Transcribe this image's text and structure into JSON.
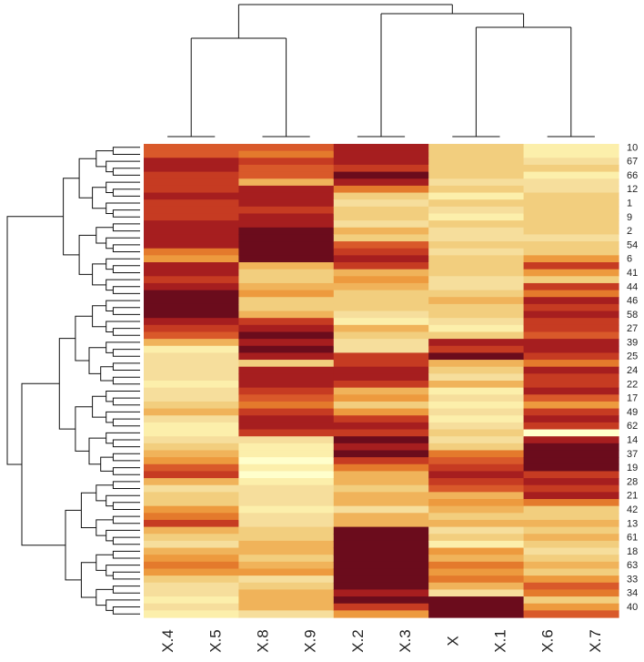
{
  "chart_data": {
    "type": "heatmap",
    "title": "",
    "palette": [
      "#ffffcc",
      "#fcefab",
      "#f6de9c",
      "#f2ce7e",
      "#f0b35a",
      "#ed9a3e",
      "#e47a2c",
      "#d9592a",
      "#c63b22",
      "#a61e1f",
      "#6b0c1c"
    ],
    "columns": [
      "X.4",
      "X.5",
      "X.8",
      "X.9",
      "X.2",
      "X.3",
      "X",
      "X.1",
      "X.6",
      "X.7"
    ],
    "column_groups": [
      {
        "members": [
          "X.4",
          "X.5"
        ]
      },
      {
        "members": [
          "X.8",
          "X.9"
        ]
      },
      {
        "members": [
          "X.2",
          "X.3"
        ]
      },
      {
        "members": [
          "X",
          "X.1"
        ]
      },
      {
        "members": [
          "X.6",
          "X.7"
        ]
      }
    ],
    "row_labels_shown": [
      "10",
      "67",
      "66",
      "12",
      "1",
      "9",
      "2",
      "54",
      "6",
      "41",
      "44",
      "46",
      "58",
      "27",
      "39",
      "25",
      "24",
      "22",
      "17",
      "49",
      "62",
      "14",
      "37",
      "19",
      "28",
      "21",
      "42",
      "13",
      "61",
      "18",
      "63",
      "33",
      "34",
      "40"
    ],
    "row_count": 68,
    "group_value_levels": [
      [
        7,
        7,
        9,
        9,
        8,
        8,
        8,
        9,
        8,
        8,
        8,
        9,
        9,
        9,
        9,
        6,
        5,
        9,
        9,
        8,
        9,
        10,
        10,
        10,
        10,
        9,
        8,
        7,
        4,
        1,
        2,
        2,
        2,
        2,
        1,
        2,
        2,
        3,
        4,
        2,
        1,
        1,
        2,
        3,
        4,
        5,
        7,
        8,
        4,
        2,
        3,
        3,
        5,
        6,
        8,
        4,
        3,
        2,
        4,
        5,
        6,
        5,
        3,
        2,
        2,
        1,
        2,
        1
      ],
      [
        7,
        6,
        8,
        7,
        7,
        4,
        9,
        9,
        9,
        8,
        9,
        9,
        10,
        10,
        10,
        10,
        10,
        4,
        3,
        3,
        4,
        5,
        3,
        3,
        4,
        8,
        9,
        10,
        9,
        10,
        9,
        3,
        9,
        9,
        9,
        8,
        7,
        6,
        8,
        9,
        9,
        8,
        2,
        1,
        1,
        0,
        1,
        0,
        1,
        2,
        2,
        2,
        1,
        2,
        2,
        3,
        3,
        4,
        4,
        3,
        4,
        5,
        2,
        3,
        4,
        4,
        4,
        2
      ],
      [
        9,
        9,
        9,
        8,
        10,
        9,
        6,
        3,
        2,
        3,
        3,
        2,
        4,
        3,
        7,
        8,
        9,
        8,
        4,
        5,
        4,
        3,
        3,
        3,
        2,
        1,
        4,
        3,
        2,
        2,
        8,
        8,
        9,
        9,
        8,
        4,
        5,
        3,
        5,
        8,
        9,
        8,
        10,
        9,
        10,
        8,
        6,
        4,
        4,
        3,
        4,
        4,
        2,
        4,
        4,
        10,
        10,
        10,
        10,
        10,
        10,
        10,
        10,
        10,
        9,
        10,
        8,
        5
      ],
      [
        3,
        3,
        3,
        3,
        3,
        2,
        3,
        1,
        3,
        2,
        1,
        3,
        2,
        2,
        3,
        2,
        3,
        3,
        3,
        2,
        2,
        3,
        4,
        3,
        3,
        2,
        1,
        3,
        9,
        8,
        10,
        4,
        3,
        2,
        4,
        1,
        2,
        1,
        2,
        1,
        2,
        3,
        2,
        3,
        6,
        7,
        8,
        9,
        8,
        7,
        4,
        5,
        4,
        3,
        4,
        2,
        3,
        1,
        5,
        4,
        6,
        5,
        6,
        4,
        2,
        10,
        10,
        10
      ],
      [
        1,
        1,
        2,
        3,
        1,
        2,
        2,
        3,
        3,
        3,
        3,
        3,
        3,
        2,
        3,
        3,
        5,
        8,
        5,
        3,
        8,
        6,
        9,
        8,
        9,
        8,
        8,
        7,
        9,
        9,
        8,
        6,
        9,
        8,
        8,
        9,
        7,
        5,
        8,
        9,
        8,
        0,
        9,
        10,
        10,
        10,
        10,
        8,
        9,
        8,
        9,
        6,
        3,
        3,
        4,
        3,
        4,
        3,
        2,
        3,
        4,
        3,
        5,
        7,
        6,
        3,
        5,
        7
      ]
    ]
  }
}
